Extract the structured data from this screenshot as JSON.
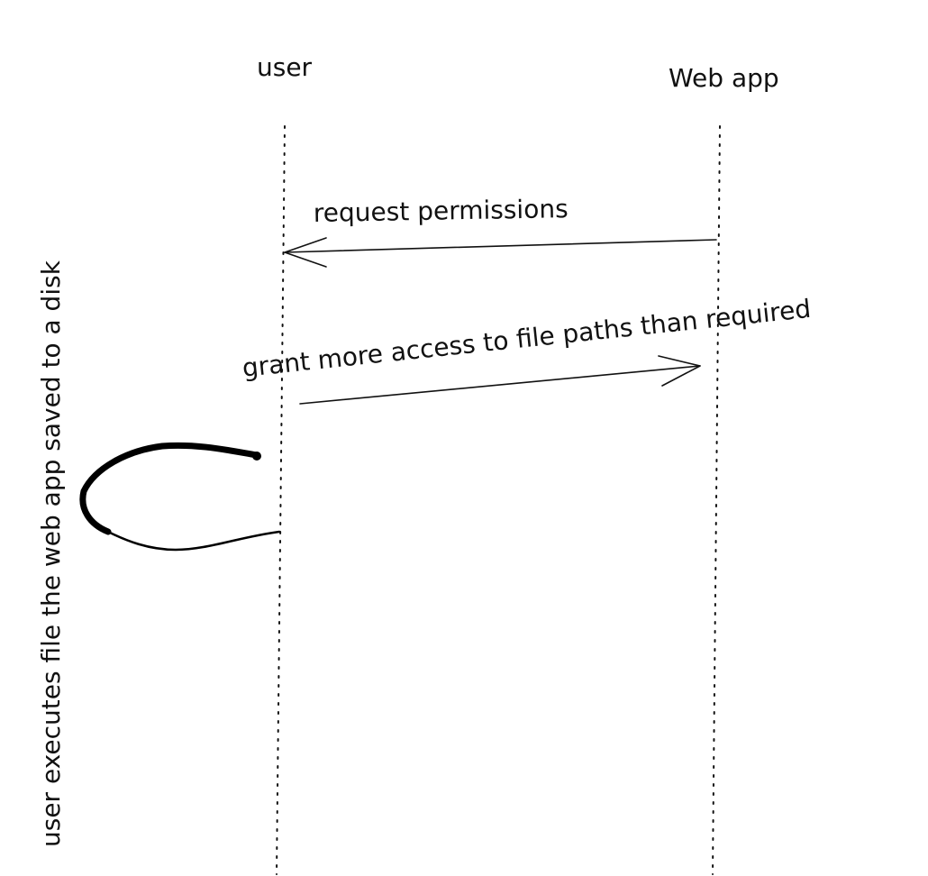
{
  "diagram": {
    "type": "sequence-diagram",
    "participants": [
      {
        "id": "user",
        "label": "user"
      },
      {
        "id": "webapp",
        "label": "Web app"
      }
    ],
    "messages": [
      {
        "from": "webapp",
        "to": "user",
        "label": "request permissions"
      },
      {
        "from": "user",
        "to": "webapp",
        "label": "grant more access to file paths than required"
      }
    ],
    "self_loop": {
      "participant": "user",
      "label": "user executes file the web app saved to a disk"
    }
  }
}
